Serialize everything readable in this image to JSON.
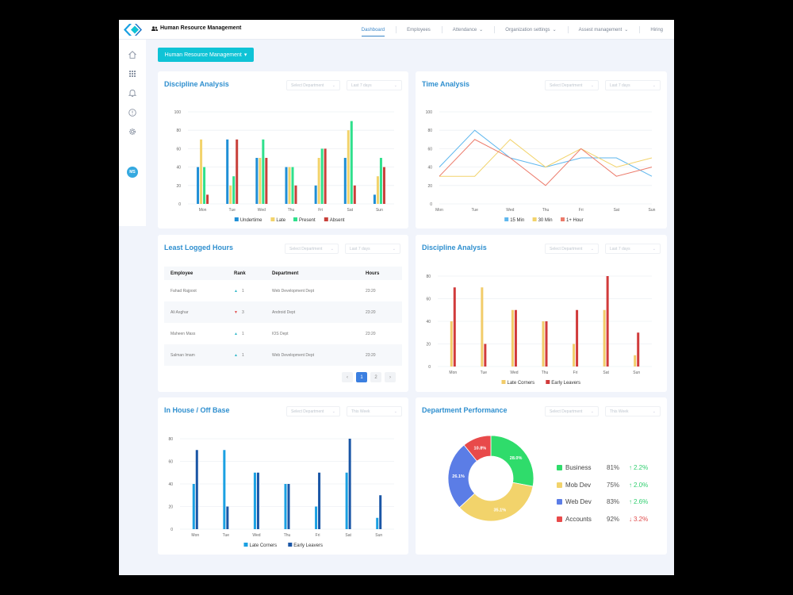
{
  "app": {
    "title": "Human Resource Management",
    "nav": [
      {
        "label": "Dashboard",
        "dropdown": false,
        "active": true
      },
      {
        "label": "Employees",
        "dropdown": false,
        "active": false
      },
      {
        "label": "Attendance",
        "dropdown": true,
        "active": false
      },
      {
        "label": "Organization settings",
        "dropdown": true,
        "active": false
      },
      {
        "label": "Assest management",
        "dropdown": true,
        "active": false
      },
      {
        "label": "Hiring",
        "dropdown": false,
        "active": false
      }
    ],
    "sidebar": {
      "icons": [
        "home-icon",
        "grid-icon",
        "bell-icon",
        "info-icon",
        "gear-icon"
      ],
      "avatar_initials": "MS"
    },
    "module_button": {
      "label": "Human Resource Management",
      "caret": "▾"
    }
  },
  "colors": {
    "accent": "#2f8fcf",
    "undertime": "#1f8fd6",
    "late": "#f2d36b",
    "present": "#2fe08c",
    "absent": "#c8403a",
    "min15": "#5fb7ee",
    "min30": "#f2d36b",
    "hour1": "#ec7a6a",
    "late_corners": "#f2cc6a",
    "early_leavers": "#d13b3b",
    "inhouse_late": "#1aa0e2",
    "inhouse_early": "#1a56a6"
  },
  "cards": {
    "discipline1": {
      "title": "Discipline Analysis",
      "filter1": "Select Department",
      "filter2": "Last 7 days"
    },
    "time": {
      "title": "Time Analysis",
      "filter1": "Select Department",
      "filter2": "Last 7 days"
    },
    "logged": {
      "title": "Least Logged Hours",
      "filter1": "Select Department",
      "filter2": "Last 7 days",
      "headers": {
        "employee": "Employee",
        "rank": "Rank",
        "department": "Department",
        "hours": "Hours"
      },
      "rows": [
        {
          "employee": "Fahad Rajpoot",
          "rank": "1",
          "direction": "up",
          "department": "Web Development Dept",
          "hours": "23:20"
        },
        {
          "employee": "Ali Asghar",
          "rank": "3",
          "direction": "down",
          "department": "Android Dept",
          "hours": "23:20"
        },
        {
          "employee": "Maheen Mass",
          "rank": "1",
          "direction": "up",
          "department": "IOS Dept",
          "hours": "23:20"
        },
        {
          "employee": "Salman Imam",
          "rank": "1",
          "direction": "up",
          "department": "Web Development Dept",
          "hours": "23:20"
        }
      ],
      "pagination": {
        "prev": "‹",
        "pages": [
          "1",
          "2"
        ],
        "current": "1",
        "next": "›"
      }
    },
    "discipline2": {
      "title": "Discipline Analysis",
      "filter1": "Select Department",
      "filter2": "Last 7 days"
    },
    "inhouse": {
      "title": "In House / Off Base",
      "filter1": "Select Department",
      "filter2": "This Week"
    },
    "dept": {
      "title": "Department Performance",
      "filter1": "Select Department",
      "filter2": "This Week",
      "legend": [
        {
          "name": "Business",
          "pct": "81%",
          "change": "2.2%",
          "trend": "up",
          "color": "#2fdc6b"
        },
        {
          "name": "Mob Dev",
          "pct": "75%",
          "change": "2.0%",
          "trend": "up",
          "color": "#f2d36b"
        },
        {
          "name": "Web Dev",
          "pct": "83%",
          "change": "2.6%",
          "trend": "up",
          "color": "#5b7de6"
        },
        {
          "name": "Accounts",
          "pct": "92%",
          "change": "3.2%",
          "trend": "down",
          "color": "#e84a4a"
        }
      ]
    }
  },
  "chart_data": [
    {
      "id": "discipline-analysis-weekly",
      "type": "bar",
      "title": "Discipline Analysis",
      "categories": [
        "Mon",
        "Tue",
        "Wed",
        "Thu",
        "Fri",
        "Sat",
        "Sun"
      ],
      "ylim": [
        0,
        100
      ],
      "yticks": [
        0,
        20,
        40,
        60,
        80,
        100
      ],
      "grid": true,
      "legend_position": "bottom",
      "series": [
        {
          "name": "Undertime",
          "color": "#1f8fd6",
          "values": [
            40,
            70,
            50,
            40,
            20,
            50,
            10
          ]
        },
        {
          "name": "Late",
          "color": "#f2d36b",
          "values": [
            70,
            20,
            50,
            40,
            50,
            80,
            30
          ]
        },
        {
          "name": "Present",
          "color": "#2fe08c",
          "values": [
            40,
            30,
            70,
            40,
            60,
            90,
            50
          ]
        },
        {
          "name": "Absent",
          "color": "#c8403a",
          "values": [
            10,
            70,
            50,
            20,
            60,
            20,
            40
          ]
        }
      ]
    },
    {
      "id": "time-analysis",
      "type": "line",
      "title": "Time Analysis",
      "categories": [
        "Mon",
        "Tue",
        "Wed",
        "Thu",
        "Fri",
        "Sat",
        "Sun"
      ],
      "ylim": [
        0,
        100
      ],
      "yticks": [
        0,
        20,
        40,
        60,
        80,
        100
      ],
      "grid": true,
      "legend_position": "bottom",
      "series": [
        {
          "name": "15 Min",
          "color": "#5fb7ee",
          "values": [
            40,
            80,
            50,
            40,
            50,
            50,
            30
          ]
        },
        {
          "name": "30 Min",
          "color": "#f2d36b",
          "values": [
            30,
            30,
            70,
            40,
            60,
            40,
            50
          ]
        },
        {
          "name": "1+ Hour",
          "color": "#ec7a6a",
          "values": [
            30,
            70,
            50,
            20,
            60,
            30,
            40
          ]
        }
      ]
    },
    {
      "id": "discipline-analysis-late-early",
      "type": "bar",
      "title": "Discipline Analysis",
      "categories": [
        "Mon",
        "Tue",
        "Wed",
        "Thu",
        "Fri",
        "Sat",
        "Sun"
      ],
      "ylim": [
        0,
        80
      ],
      "yticks": [
        0,
        20,
        40,
        60,
        80
      ],
      "grid": true,
      "legend_position": "bottom",
      "series": [
        {
          "name": "Late Corners",
          "color": "#f2cc6a",
          "values": [
            40,
            70,
            50,
            40,
            20,
            50,
            10
          ]
        },
        {
          "name": "Early Leavers",
          "color": "#d13b3b",
          "values": [
            70,
            20,
            50,
            40,
            50,
            80,
            30
          ]
        }
      ]
    },
    {
      "id": "in-house-off-base",
      "type": "bar",
      "title": "In House / Off Base",
      "categories": [
        "Mon",
        "Tue",
        "Wed",
        "Thu",
        "Fri",
        "Sat",
        "Sun"
      ],
      "ylim": [
        0,
        80
      ],
      "yticks": [
        0,
        20,
        40,
        60,
        80
      ],
      "grid": true,
      "legend_position": "bottom",
      "series": [
        {
          "name": "Late Corners",
          "color": "#1aa0e2",
          "values": [
            40,
            70,
            50,
            40,
            20,
            50,
            10
          ]
        },
        {
          "name": "Early Leavers",
          "color": "#1a56a6",
          "values": [
            70,
            20,
            50,
            40,
            50,
            80,
            30
          ]
        }
      ]
    },
    {
      "id": "department-performance",
      "type": "pie",
      "title": "Department Performance",
      "donut": true,
      "slices": [
        {
          "label": "Business",
          "value": 28.0,
          "display": "28.0%",
          "color": "#2fdc6b"
        },
        {
          "label": "Mob Dev",
          "value": 35.1,
          "display": "35.1%",
          "color": "#f2d36b"
        },
        {
          "label": "Web Dev",
          "value": 26.1,
          "display": "26.1%",
          "color": "#5b7de6"
        },
        {
          "label": "Accounts",
          "value": 10.8,
          "display": "10.8%",
          "color": "#e84a4a"
        }
      ]
    }
  ]
}
